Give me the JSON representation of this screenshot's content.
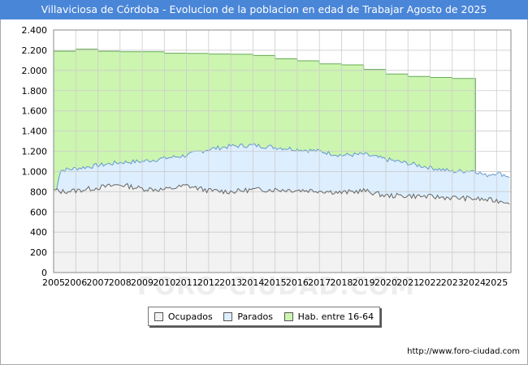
{
  "header": {
    "title": "Villaviciosa de Córdoba - Evolucion de la poblacion en edad de Trabajar Agosto de 2025"
  },
  "watermark": "FORO-CIUDAD.COM",
  "source": "http://www.foro-ciudad.com",
  "legend": {
    "ocupados": "Ocupados",
    "parados": "Parados",
    "hab": "Hab. entre 16-64"
  },
  "colors": {
    "ocupados_fill": "#f2f2f2",
    "ocupados_line": "#666666",
    "parados_fill": "#ddeeff",
    "parados_line": "#6699cc",
    "hab_fill": "#ccf5b0",
    "hab_line": "#66aa55",
    "title_bg": "#4a86d8"
  },
  "chart_data": {
    "type": "area",
    "title": "Villaviciosa de Córdoba - Evolucion de la poblacion en edad de Trabajar Agosto de 2025",
    "xlabel": "",
    "ylabel": "",
    "xlim": [
      2005,
      2025.65
    ],
    "ylim": [
      0,
      2400
    ],
    "y_ticks": [
      0,
      200,
      400,
      600,
      800,
      1000,
      1200,
      1400,
      1600,
      1800,
      2000,
      2200,
      2400
    ],
    "y_tick_labels": [
      "0",
      "200",
      "400",
      "600",
      "800",
      "1.000",
      "1.200",
      "1.400",
      "1.600",
      "1.800",
      "2.000",
      "2.200",
      "2.400"
    ],
    "x_ticks": [
      2005,
      2006,
      2007,
      2008,
      2009,
      2010,
      2011,
      2012,
      2013,
      2014,
      2015,
      2016,
      2017,
      2018,
      2019,
      2020,
      2021,
      2022,
      2023,
      2024,
      2025
    ],
    "grid": true,
    "legend_position": "bottom",
    "series": [
      {
        "name": "Hab. entre 16-64",
        "x": [
          2005,
          2006,
          2007,
          2008,
          2009,
          2010,
          2011,
          2012,
          2013,
          2014,
          2015,
          2016,
          2017,
          2018,
          2019,
          2020,
          2021,
          2022,
          2023,
          2024
        ],
        "values": [
          2190,
          2210,
          2190,
          2185,
          2185,
          2170,
          2168,
          2162,
          2160,
          2148,
          2115,
          2095,
          2065,
          2055,
          2010,
          1965,
          1940,
          1930,
          1920,
          1920
        ]
      },
      {
        "name": "Parados",
        "x": [
          2005,
          2005.3,
          2006,
          2007,
          2008,
          2009,
          2010,
          2011,
          2012,
          2013,
          2014,
          2015,
          2016,
          2017,
          2018,
          2019,
          2020,
          2021,
          2022,
          2023,
          2024,
          2024.5,
          2025,
          2025.6
        ],
        "values": [
          700,
          1010,
          1030,
          1060,
          1090,
          1100,
          1130,
          1160,
          1220,
          1250,
          1260,
          1240,
          1220,
          1200,
          1160,
          1170,
          1120,
          1080,
          1040,
          1000,
          1010,
          960,
          990,
          950
        ]
      },
      {
        "name": "Ocupados",
        "x": [
          2005,
          2005.3,
          2006,
          2007,
          2008,
          2009,
          2010,
          2011,
          2012,
          2013,
          2014,
          2015,
          2016,
          2017,
          2018,
          2019,
          2020,
          2021,
          2022,
          2023,
          2024,
          2024.5,
          2025,
          2025.6
        ],
        "values": [
          820,
          800,
          810,
          840,
          870,
          830,
          820,
          860,
          810,
          800,
          820,
          820,
          815,
          810,
          790,
          810,
          760,
          760,
          750,
          740,
          730,
          720,
          710,
          700
        ]
      }
    ]
  }
}
